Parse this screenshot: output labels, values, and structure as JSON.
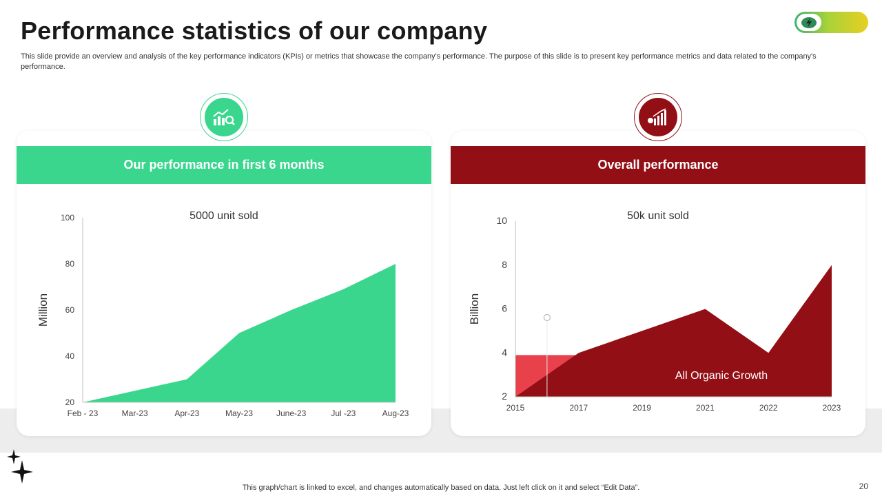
{
  "slide": {
    "title": "Performance statistics of our company",
    "subtitle": "This slide provide an overview and analysis of the key performance indicators (KPIs) or metrics that showcase the company's performance. The purpose of this slide is to present key performance metrics and data related to the company's performance.",
    "footer_note": "This graph/chart is linked to excel, and changes automatically based on data. Just left click on it and select “Edit Data”.",
    "page_number": "20"
  },
  "colors": {
    "green": "#3bd68e",
    "dark_red": "#930f16",
    "bright_red": "#e8414b"
  },
  "icons": {
    "toggle": "lightning-icon",
    "left_badge": "bar-chart-growth-icon",
    "right_badge": "rising-bars-icon",
    "decor": "sparkle-icon"
  },
  "cards": [
    {
      "header": "Our performance in first 6 months"
    },
    {
      "header": "Overall performance"
    }
  ],
  "chart_data": [
    {
      "type": "area",
      "title": "5000 unit sold",
      "ylabel": "Million",
      "xlabel": "",
      "categories": [
        "Feb - 23",
        "Mar-23",
        "Apr-23",
        "May-23",
        "June-23",
        "Jul -23",
        "Aug-23"
      ],
      "values": [
        20,
        25,
        30,
        50,
        60,
        69,
        80
      ],
      "ylim": [
        20,
        100
      ],
      "yticks": [
        20,
        40,
        60,
        80,
        100
      ],
      "grid": false,
      "color": "#3bd68e"
    },
    {
      "type": "area",
      "title": "50k unit sold",
      "ylabel": "Billion",
      "xlabel": "",
      "categories": [
        "2015",
        "2017",
        "2019",
        "2021",
        "2022",
        "2023"
      ],
      "values": [
        2,
        4,
        5,
        6,
        4,
        8
      ],
      "ylim": [
        2,
        10
      ],
      "yticks": [
        2,
        4,
        6,
        8,
        10
      ],
      "grid": false,
      "color": "#930f16",
      "annotation": {
        "text": "All Organic Growth",
        "highlight_color": "#e8414b",
        "highlight_value": 3.9
      }
    }
  ]
}
